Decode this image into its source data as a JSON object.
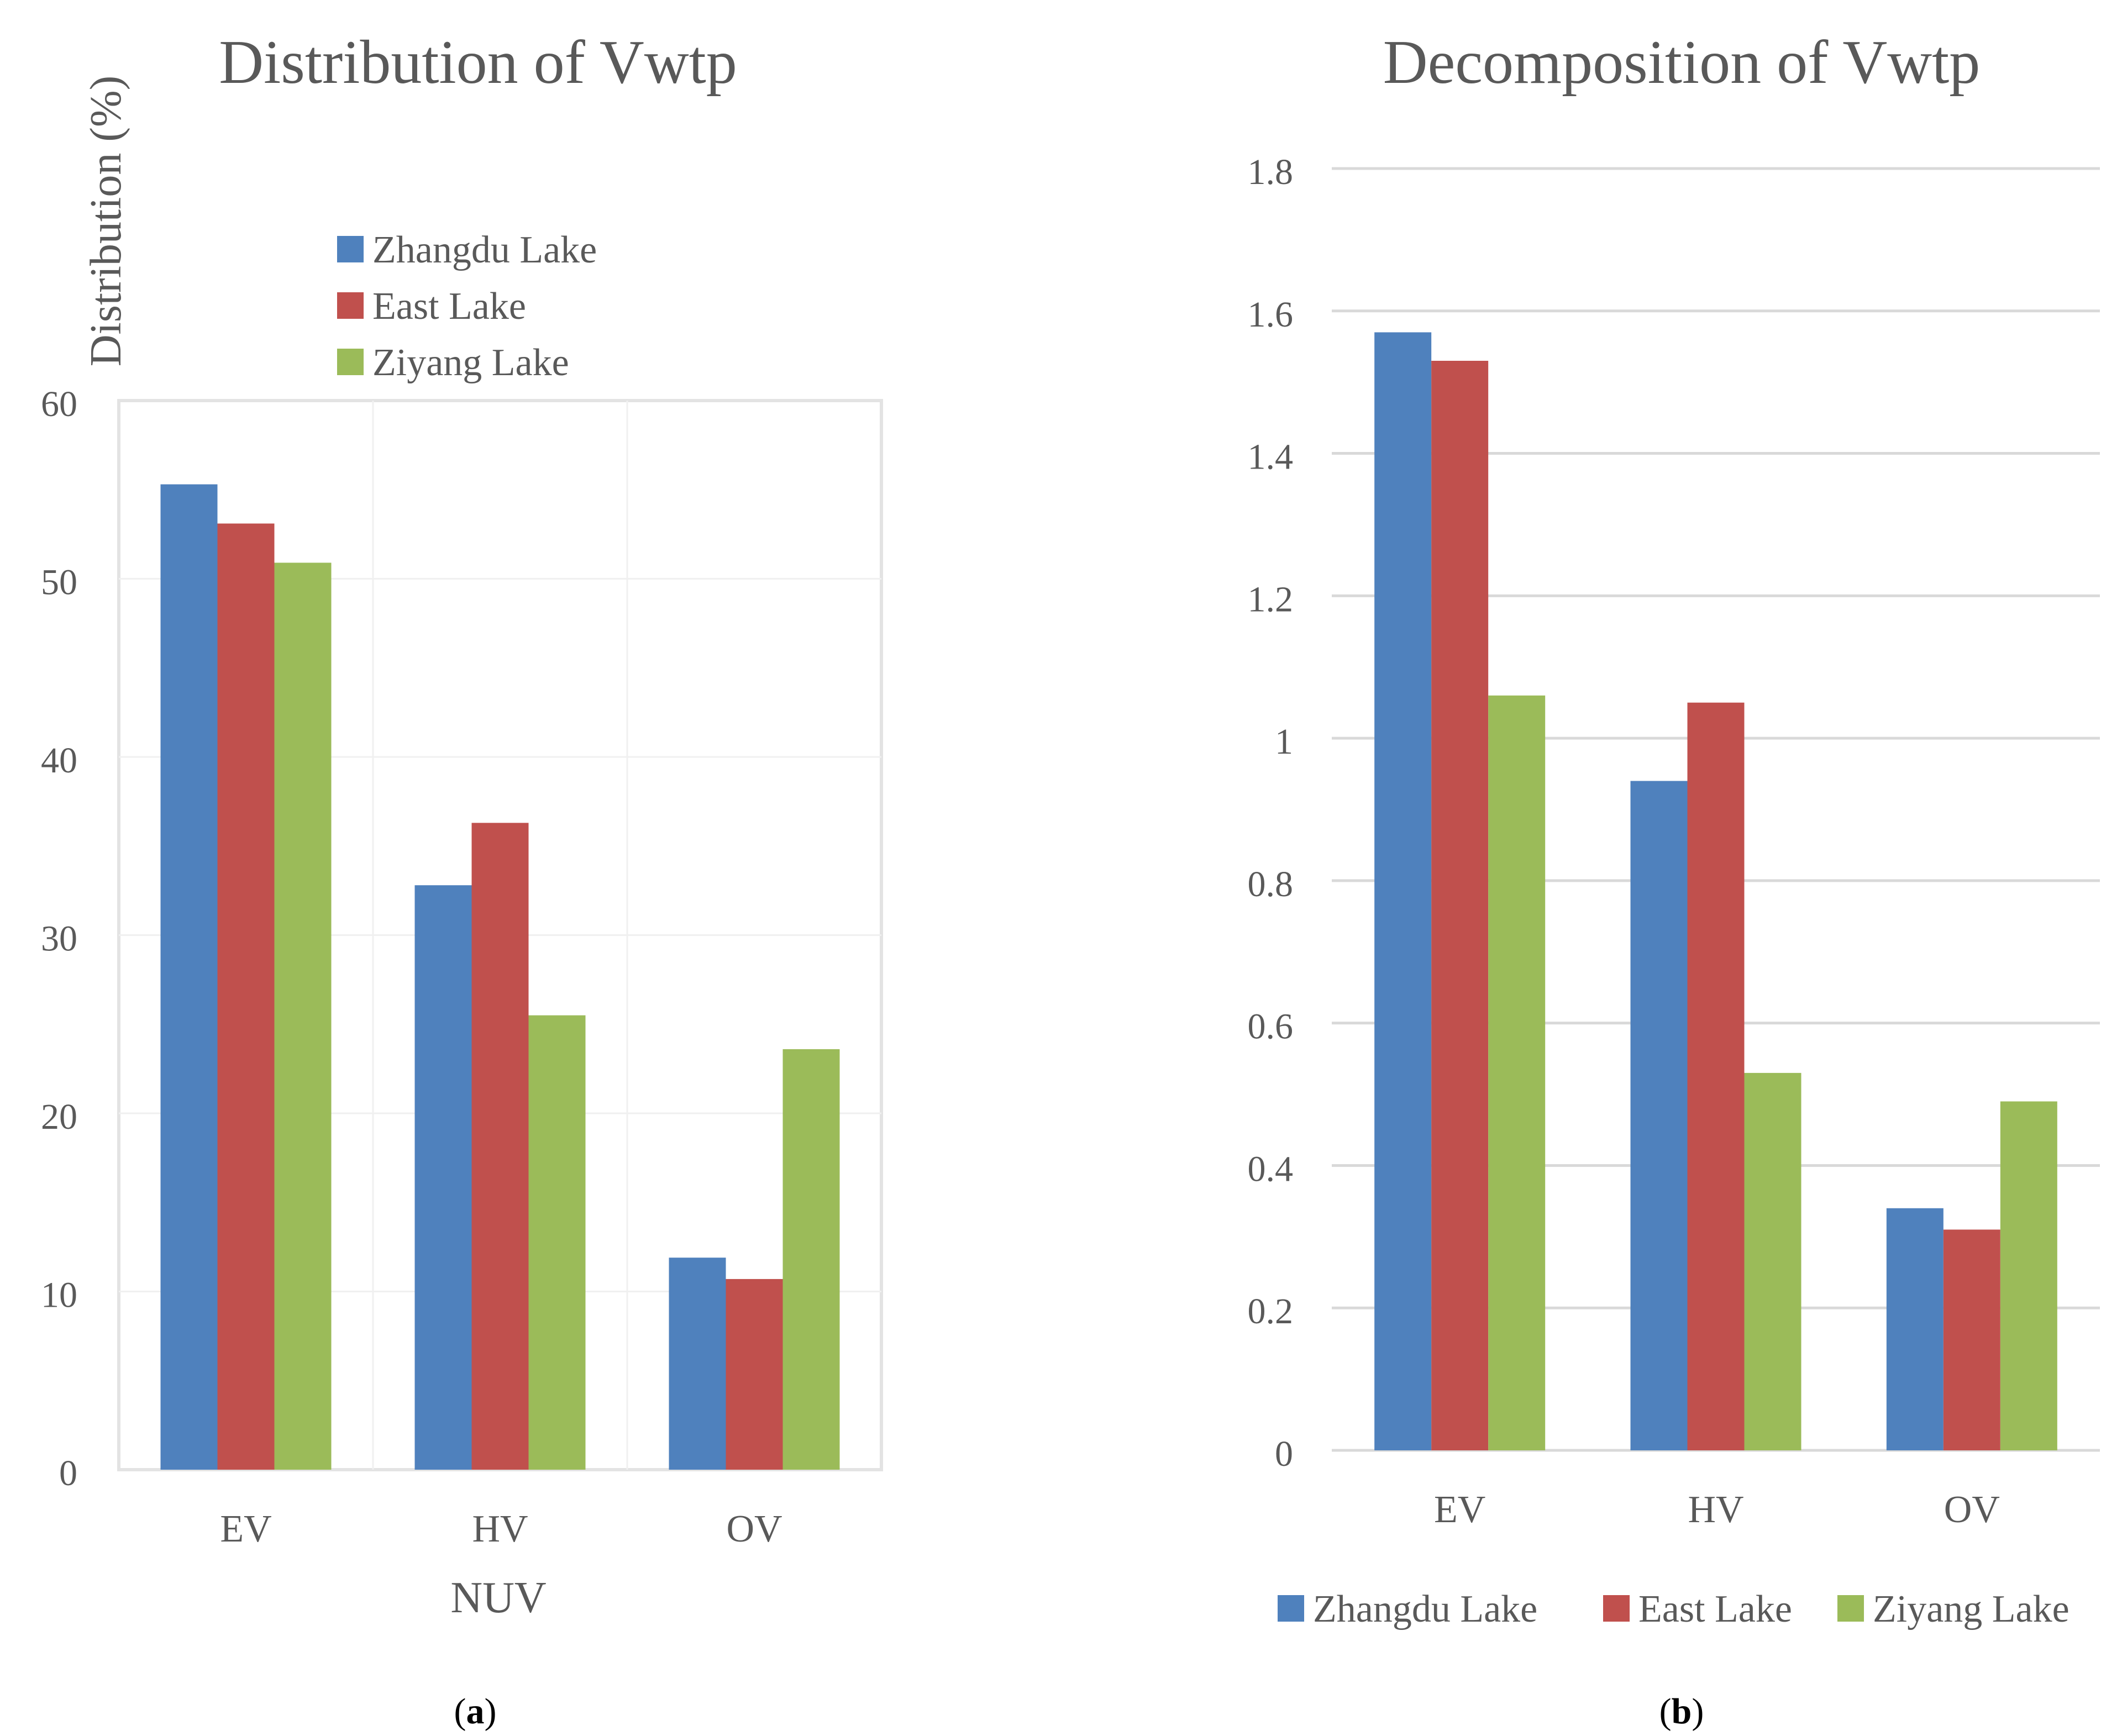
{
  "colors": {
    "zhangdu": "#4f81bd",
    "east": "#c0504d",
    "ziyang": "#9bbb59",
    "text": "#595959",
    "grid_a": "#f0f0f0",
    "grid_b": "#d9d9d9"
  },
  "panel_labels": {
    "a": "a",
    "b": "b"
  },
  "chart_data": [
    {
      "type": "bar",
      "title": "Distribution of Vwtp",
      "ylabel": "Distribution (%)",
      "xlabel": "NUV",
      "categories": [
        "EV",
        "HV",
        "OV"
      ],
      "series": [
        {
          "name": "Zhangdu Lake",
          "values": [
            55.3,
            32.8,
            11.9
          ]
        },
        {
          "name": "East Lake",
          "values": [
            53.1,
            36.3,
            10.7
          ]
        },
        {
          "name": "Ziyang Lake",
          "values": [
            50.9,
            25.5,
            23.6
          ]
        }
      ],
      "ylim": [
        0,
        60
      ],
      "yticks": [
        "0",
        "10",
        "20",
        "30",
        "40",
        "50",
        "60"
      ],
      "grid": true,
      "legend": "top-center"
    },
    {
      "type": "bar",
      "title": "Decomposition of Vwtp",
      "ylabel": "",
      "xlabel": "",
      "categories": [
        "EV",
        "HV",
        "OV"
      ],
      "series": [
        {
          "name": "Zhangdu Lake",
          "values": [
            1.57,
            0.94,
            0.34
          ]
        },
        {
          "name": "East Lake",
          "values": [
            1.53,
            1.05,
            0.31
          ]
        },
        {
          "name": "Ziyang Lake",
          "values": [
            1.06,
            0.53,
            0.49
          ]
        }
      ],
      "ylim": [
        0,
        1.8
      ],
      "yticks": [
        "0",
        "0.2",
        "0.4",
        "0.6",
        "0.8",
        "1",
        "1.2",
        "1.4",
        "1.6",
        "1.8"
      ],
      "grid": true,
      "legend": "bottom"
    }
  ]
}
